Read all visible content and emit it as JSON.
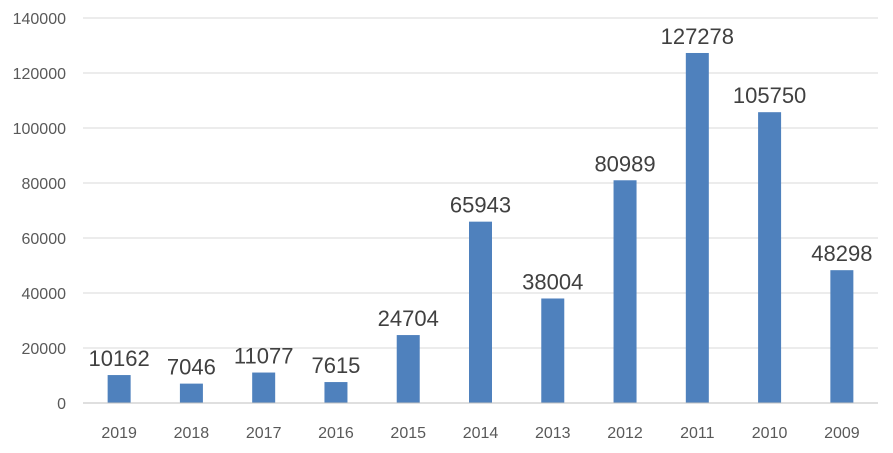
{
  "colors": {
    "bar": "#4f81bd",
    "grid": "#d9d9d9",
    "tick_text": "#595959",
    "label_text": "#404040",
    "background": "#ffffff"
  },
  "chart_data": {
    "type": "bar",
    "categories": [
      "2019",
      "2018",
      "2017",
      "2016",
      "2015",
      "2014",
      "2013",
      "2012",
      "2011",
      "2010",
      "2009"
    ],
    "values": [
      10162,
      7046,
      11077,
      7615,
      24704,
      65943,
      38004,
      80989,
      127278,
      105750,
      48298
    ],
    "data_labels": [
      "10162",
      "7046",
      "11077",
      "7615",
      "24704",
      "65943",
      "38004",
      "80989",
      "127278",
      "105750",
      "48298"
    ],
    "ylim": [
      0,
      140000
    ],
    "yticks": [
      0,
      20000,
      40000,
      60000,
      80000,
      100000,
      120000,
      140000
    ],
    "ytick_labels": [
      "0",
      "20000",
      "40000",
      "60000",
      "80000",
      "100000",
      "120000",
      "140000"
    ],
    "grid": true,
    "legend": "none"
  }
}
